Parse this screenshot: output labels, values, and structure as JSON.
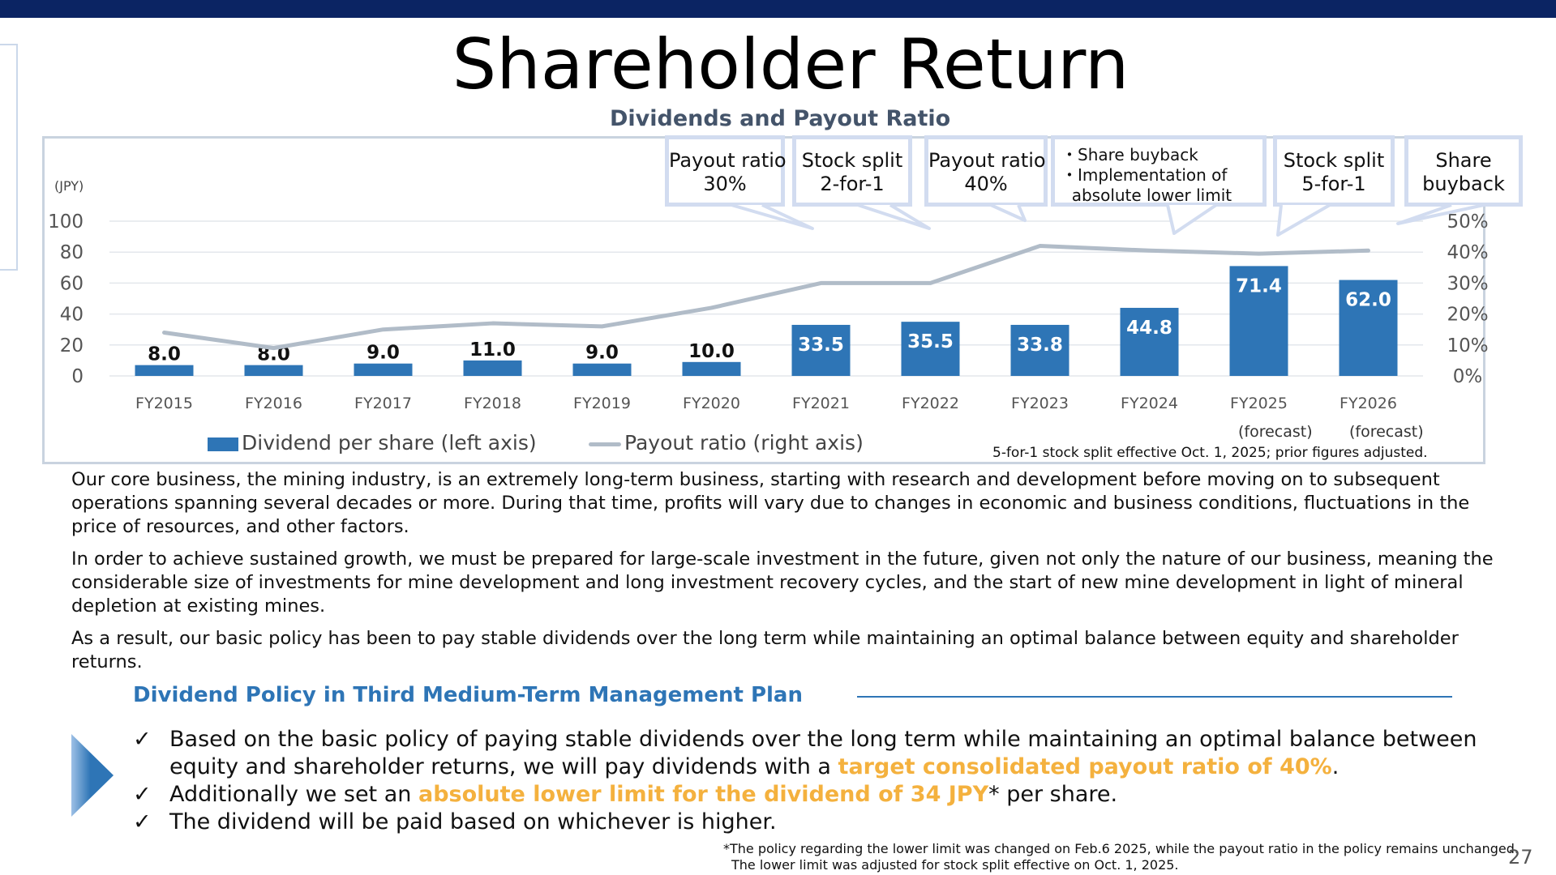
{
  "page": {
    "title": "Shareholder Return",
    "page_number": "27"
  },
  "chart_data": {
    "type": "bar",
    "title": "Dividends  and Payout Ratio",
    "y_unit": "(JPY)",
    "categories": [
      "FY2015",
      "FY2016",
      "FY2017",
      "FY2018",
      "FY2019",
      "FY2020",
      "FY2021",
      "FY2022",
      "FY2023",
      "FY2024",
      "FY2025",
      "FY2026"
    ],
    "series": [
      {
        "name": "Dividend per share (left axis)",
        "type": "bar",
        "axis": "left",
        "values": [
          8.0,
          8.0,
          9.0,
          11.0,
          9.0,
          10.0,
          33.5,
          35.5,
          33.8,
          44.8,
          71.4,
          62.0
        ],
        "labels": [
          "8.0",
          "8.0",
          "9.0",
          "11.0",
          "9.0",
          "10.0",
          "33.5",
          "35.5",
          "33.8",
          "44.8",
          "71.4",
          "62.0"
        ],
        "bar_heights_display": [
          7,
          7,
          8,
          10,
          8,
          9,
          33,
          35,
          33,
          44,
          71,
          62
        ]
      },
      {
        "name": "Payout ratio (right axis)",
        "type": "line",
        "axis": "right",
        "values": [
          14,
          9,
          15,
          17,
          16,
          22,
          30,
          30,
          42,
          40.5,
          39.5,
          40.5
        ]
      }
    ],
    "y_left": {
      "ticks": [
        "0",
        "20",
        "40",
        "60",
        "80",
        "100"
      ],
      "range": [
        0,
        100
      ]
    },
    "y_right": {
      "ticks": [
        "0%",
        "10%",
        "20%",
        "30%",
        "40%",
        "50%"
      ],
      "range": [
        0,
        50
      ]
    },
    "forecast_labels": [
      "(forecast)",
      "(forecast)"
    ],
    "footnote": "5-for-1 stock split effective Oct. 1, 2025; prior figures adjusted.",
    "grid": true,
    "legend": "bottom",
    "colors": {
      "bar": "#2e75b6",
      "line": "#b1bcc8",
      "grid": "#e3e7ec"
    }
  },
  "callouts": [
    {
      "lines": [
        "Payout ratio",
        "30%"
      ]
    },
    {
      "lines": [
        "Stock split",
        "2-for-1"
      ]
    },
    {
      "lines": [
        "Payout ratio",
        "40%"
      ]
    },
    {
      "lines": [
        "・Share buyback",
        "・Implementation of",
        "  absolute lower limit"
      ]
    },
    {
      "lines": [
        "Stock split",
        "5-for-1"
      ]
    },
    {
      "lines": [
        "Share",
        "buyback"
      ]
    }
  ],
  "body": {
    "para1": "Our core business, the mining industry, is an extremely long-term business, starting with research and development before moving on to subsequent operations spanning several decades or more. During that time, profits will vary due to changes in economic and business conditions, fluctuations in the price of resources, and other factors.",
    "para2": "In order to achieve sustained growth, we must be prepared for large-scale investment in the future, given not only the nature of our business, meaning the considerable size of investments for mine development and long investment recovery cycles, and the start of new mine development in light of mineral depletion at existing mines.",
    "para3": "As a result, our basic policy has been to pay stable dividends over the long term while maintaining an optimal balance between equity and shareholder returns."
  },
  "policy": {
    "heading": "Dividend Policy in Third Medium-Term Management Plan",
    "check": "✓",
    "b1_text": "Based on the basic policy of paying stable dividends over the long term while maintaining an optimal balance between equity and shareholder returns, we will pay dividends with a ",
    "b1_hl": "target consolidated payout ratio of 40%",
    "b1_end": ".",
    "b2_text": "Additionally we set an ",
    "b2_hl": "absolute lower limit for the dividend of 34 JPY",
    "b2_end": "* per share.",
    "b3_text": "The dividend will be paid based on whichever is higher.",
    "footnote_line1": "*The policy regarding the lower limit was changed on Feb.6 2025, while the payout ratio in the policy remains unchanged.",
    "footnote_line2": "The lower limit was adjusted for stock split effective on Oct. 1, 2025."
  },
  "colors": {
    "header": "#0b2463",
    "accent": "#2e75b6",
    "highlight": "#f4b13e",
    "title_gray": "#44546a"
  }
}
